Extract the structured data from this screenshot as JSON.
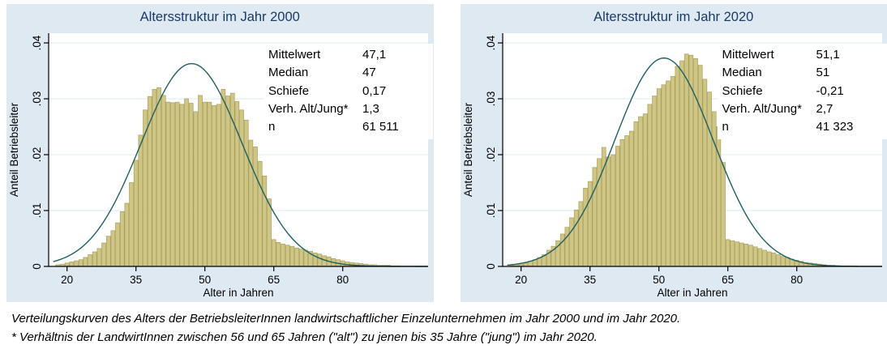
{
  "caption": {
    "line1": "Verteilungskurven des Alters der BetriebsleiterInnen landwirtschaftlicher Einzelunternehmen im Jahr 2000 und im Jahr 2020.",
    "line2": "* Verhältnis der LandwirtInnen zwischen 56 und 65 Jahren (\"alt\") zu jenen bis 35 Jahre (\"jung\") im Jahr 2020."
  },
  "colors": {
    "panel_bg": "#dfe9f2",
    "plot_bg": "#ffffff",
    "grid": "#dde8f1",
    "bar_fill": "#cfc685",
    "bar_stroke": "#a89f5d",
    "curve": "#1e6060",
    "axis": "#000000",
    "title_text": "#1b3a66",
    "text": "#000000"
  },
  "chart_data": [
    {
      "type": "bar",
      "subtype": "histogram-with-normal-curve",
      "title": "Altersstruktur im Jahr 2000",
      "xlabel": "Alter in Jahren",
      "ylabel": "Anteil Betriebsleiter",
      "bin_width": 1,
      "xlim": [
        16,
        99
      ],
      "ylim": [
        0,
        0.04
      ],
      "grid": true,
      "xticks": {
        "values": [
          20,
          35,
          50,
          65,
          80
        ],
        "labels": [
          "20",
          "35",
          "50",
          "65",
          "80"
        ]
      },
      "yticks": {
        "values": [
          0,
          0.01,
          0.02,
          0.03,
          0.04
        ],
        "labels": [
          "0",
          ".01",
          ".02",
          ".03",
          ".04"
        ]
      },
      "ages": [
        18,
        19,
        20,
        21,
        22,
        23,
        24,
        25,
        26,
        27,
        28,
        29,
        30,
        31,
        32,
        33,
        34,
        35,
        36,
        37,
        38,
        39,
        40,
        41,
        42,
        43,
        44,
        45,
        46,
        47,
        48,
        49,
        50,
        51,
        52,
        53,
        54,
        55,
        56,
        57,
        58,
        59,
        60,
        61,
        62,
        63,
        64,
        65,
        66,
        67,
        68,
        69,
        70,
        71,
        72,
        73,
        74,
        75,
        76,
        77,
        78,
        79,
        80,
        81,
        82,
        83,
        84,
        85,
        86,
        87,
        88,
        89,
        90,
        91,
        92
      ],
      "values": [
        0.0003,
        0.0004,
        0.0006,
        0.0008,
        0.001,
        0.0012,
        0.0016,
        0.0021,
        0.0026,
        0.0032,
        0.0042,
        0.0054,
        0.0064,
        0.0078,
        0.0098,
        0.0113,
        0.015,
        0.019,
        0.0235,
        0.028,
        0.0304,
        0.0317,
        0.032,
        0.0306,
        0.0294,
        0.0293,
        0.0294,
        0.029,
        0.03,
        0.0292,
        0.0277,
        0.0306,
        0.0294,
        0.0294,
        0.0288,
        0.029,
        0.0317,
        0.0305,
        0.031,
        0.0295,
        0.028,
        0.0262,
        0.0226,
        0.0214,
        0.0188,
        0.0162,
        0.0121,
        0.0048,
        0.0043,
        0.004,
        0.0038,
        0.0036,
        0.0033,
        0.0031,
        0.0029,
        0.0027,
        0.0024,
        0.0022,
        0.0019,
        0.0017,
        0.0014,
        0.0012,
        0.001,
        0.0008,
        0.0007,
        0.0006,
        0.0005,
        0.0004,
        0.0003,
        0.0003,
        0.0002,
        0.0002,
        0.0002,
        0.0001,
        0.0001
      ],
      "normal_curve": {
        "mean": 47.1,
        "sd": 11.0,
        "peak_density": 0.0363
      },
      "stats": [
        {
          "label": "Mittelwert",
          "value": "47,1"
        },
        {
          "label": "Median",
          "value": "47"
        },
        {
          "label": "Schiefe",
          "value": "0,17"
        },
        {
          "label": "Verh. Alt/Jung*",
          "value": "1,3"
        },
        {
          "label": "n",
          "value": "61 511"
        }
      ]
    },
    {
      "type": "bar",
      "subtype": "histogram-with-normal-curve",
      "title": "Altersstruktur im Jahr 2020",
      "xlabel": "Alter in Jahren",
      "ylabel": "Anteil Betriebsleiter",
      "bin_width": 1,
      "xlim": [
        16,
        99
      ],
      "ylim": [
        0,
        0.04
      ],
      "grid": true,
      "xticks": {
        "values": [
          20,
          35,
          50,
          65,
          80
        ],
        "labels": [
          "20",
          "35",
          "50",
          "65",
          "80"
        ]
      },
      "yticks": {
        "values": [
          0,
          0.01,
          0.02,
          0.03,
          0.04
        ],
        "labels": [
          "0",
          ".01",
          ".02",
          ".03",
          ".04"
        ]
      },
      "ages": [
        18,
        19,
        20,
        21,
        22,
        23,
        24,
        25,
        26,
        27,
        28,
        29,
        30,
        31,
        32,
        33,
        34,
        35,
        36,
        37,
        38,
        39,
        40,
        41,
        42,
        43,
        44,
        45,
        46,
        47,
        48,
        49,
        50,
        51,
        52,
        53,
        54,
        55,
        56,
        57,
        58,
        59,
        60,
        61,
        62,
        63,
        64,
        65,
        66,
        67,
        68,
        69,
        70,
        71,
        72,
        73,
        74,
        75,
        76,
        77,
        78,
        79,
        80,
        81,
        82,
        83,
        84,
        85,
        86,
        87,
        88,
        89,
        90,
        91,
        92
      ],
      "values": [
        0.0002,
        0.0003,
        0.0004,
        0.0006,
        0.0009,
        0.0012,
        0.0016,
        0.0021,
        0.0029,
        0.0036,
        0.0046,
        0.0058,
        0.007,
        0.0087,
        0.0101,
        0.0116,
        0.014,
        0.0152,
        0.0177,
        0.0193,
        0.0213,
        0.0196,
        0.02,
        0.0215,
        0.0227,
        0.0234,
        0.0242,
        0.0259,
        0.0268,
        0.0273,
        0.029,
        0.0305,
        0.0318,
        0.0325,
        0.0332,
        0.034,
        0.0358,
        0.0368,
        0.038,
        0.0378,
        0.0372,
        0.036,
        0.0335,
        0.0312,
        0.0277,
        0.025,
        0.0186,
        0.0048,
        0.0046,
        0.0044,
        0.0042,
        0.004,
        0.0038,
        0.0035,
        0.0032,
        0.0029,
        0.0026,
        0.0024,
        0.0021,
        0.0018,
        0.0016,
        0.0013,
        0.0011,
        0.0009,
        0.0007,
        0.0006,
        0.0005,
        0.0004,
        0.0003,
        0.0002,
        0.0002,
        0.0001,
        0.0001,
        0.0001,
        0.0001
      ],
      "normal_curve": {
        "mean": 51.1,
        "sd": 10.7,
        "peak_density": 0.0373
      },
      "stats": [
        {
          "label": "Mittelwert",
          "value": "51,1"
        },
        {
          "label": "Median",
          "value": "51"
        },
        {
          "label": "Schiefe",
          "value": "-0,21"
        },
        {
          "label": "Verh. Alt/Jung*",
          "value": "2,7"
        },
        {
          "label": "n",
          "value": "41 323"
        }
      ]
    }
  ]
}
